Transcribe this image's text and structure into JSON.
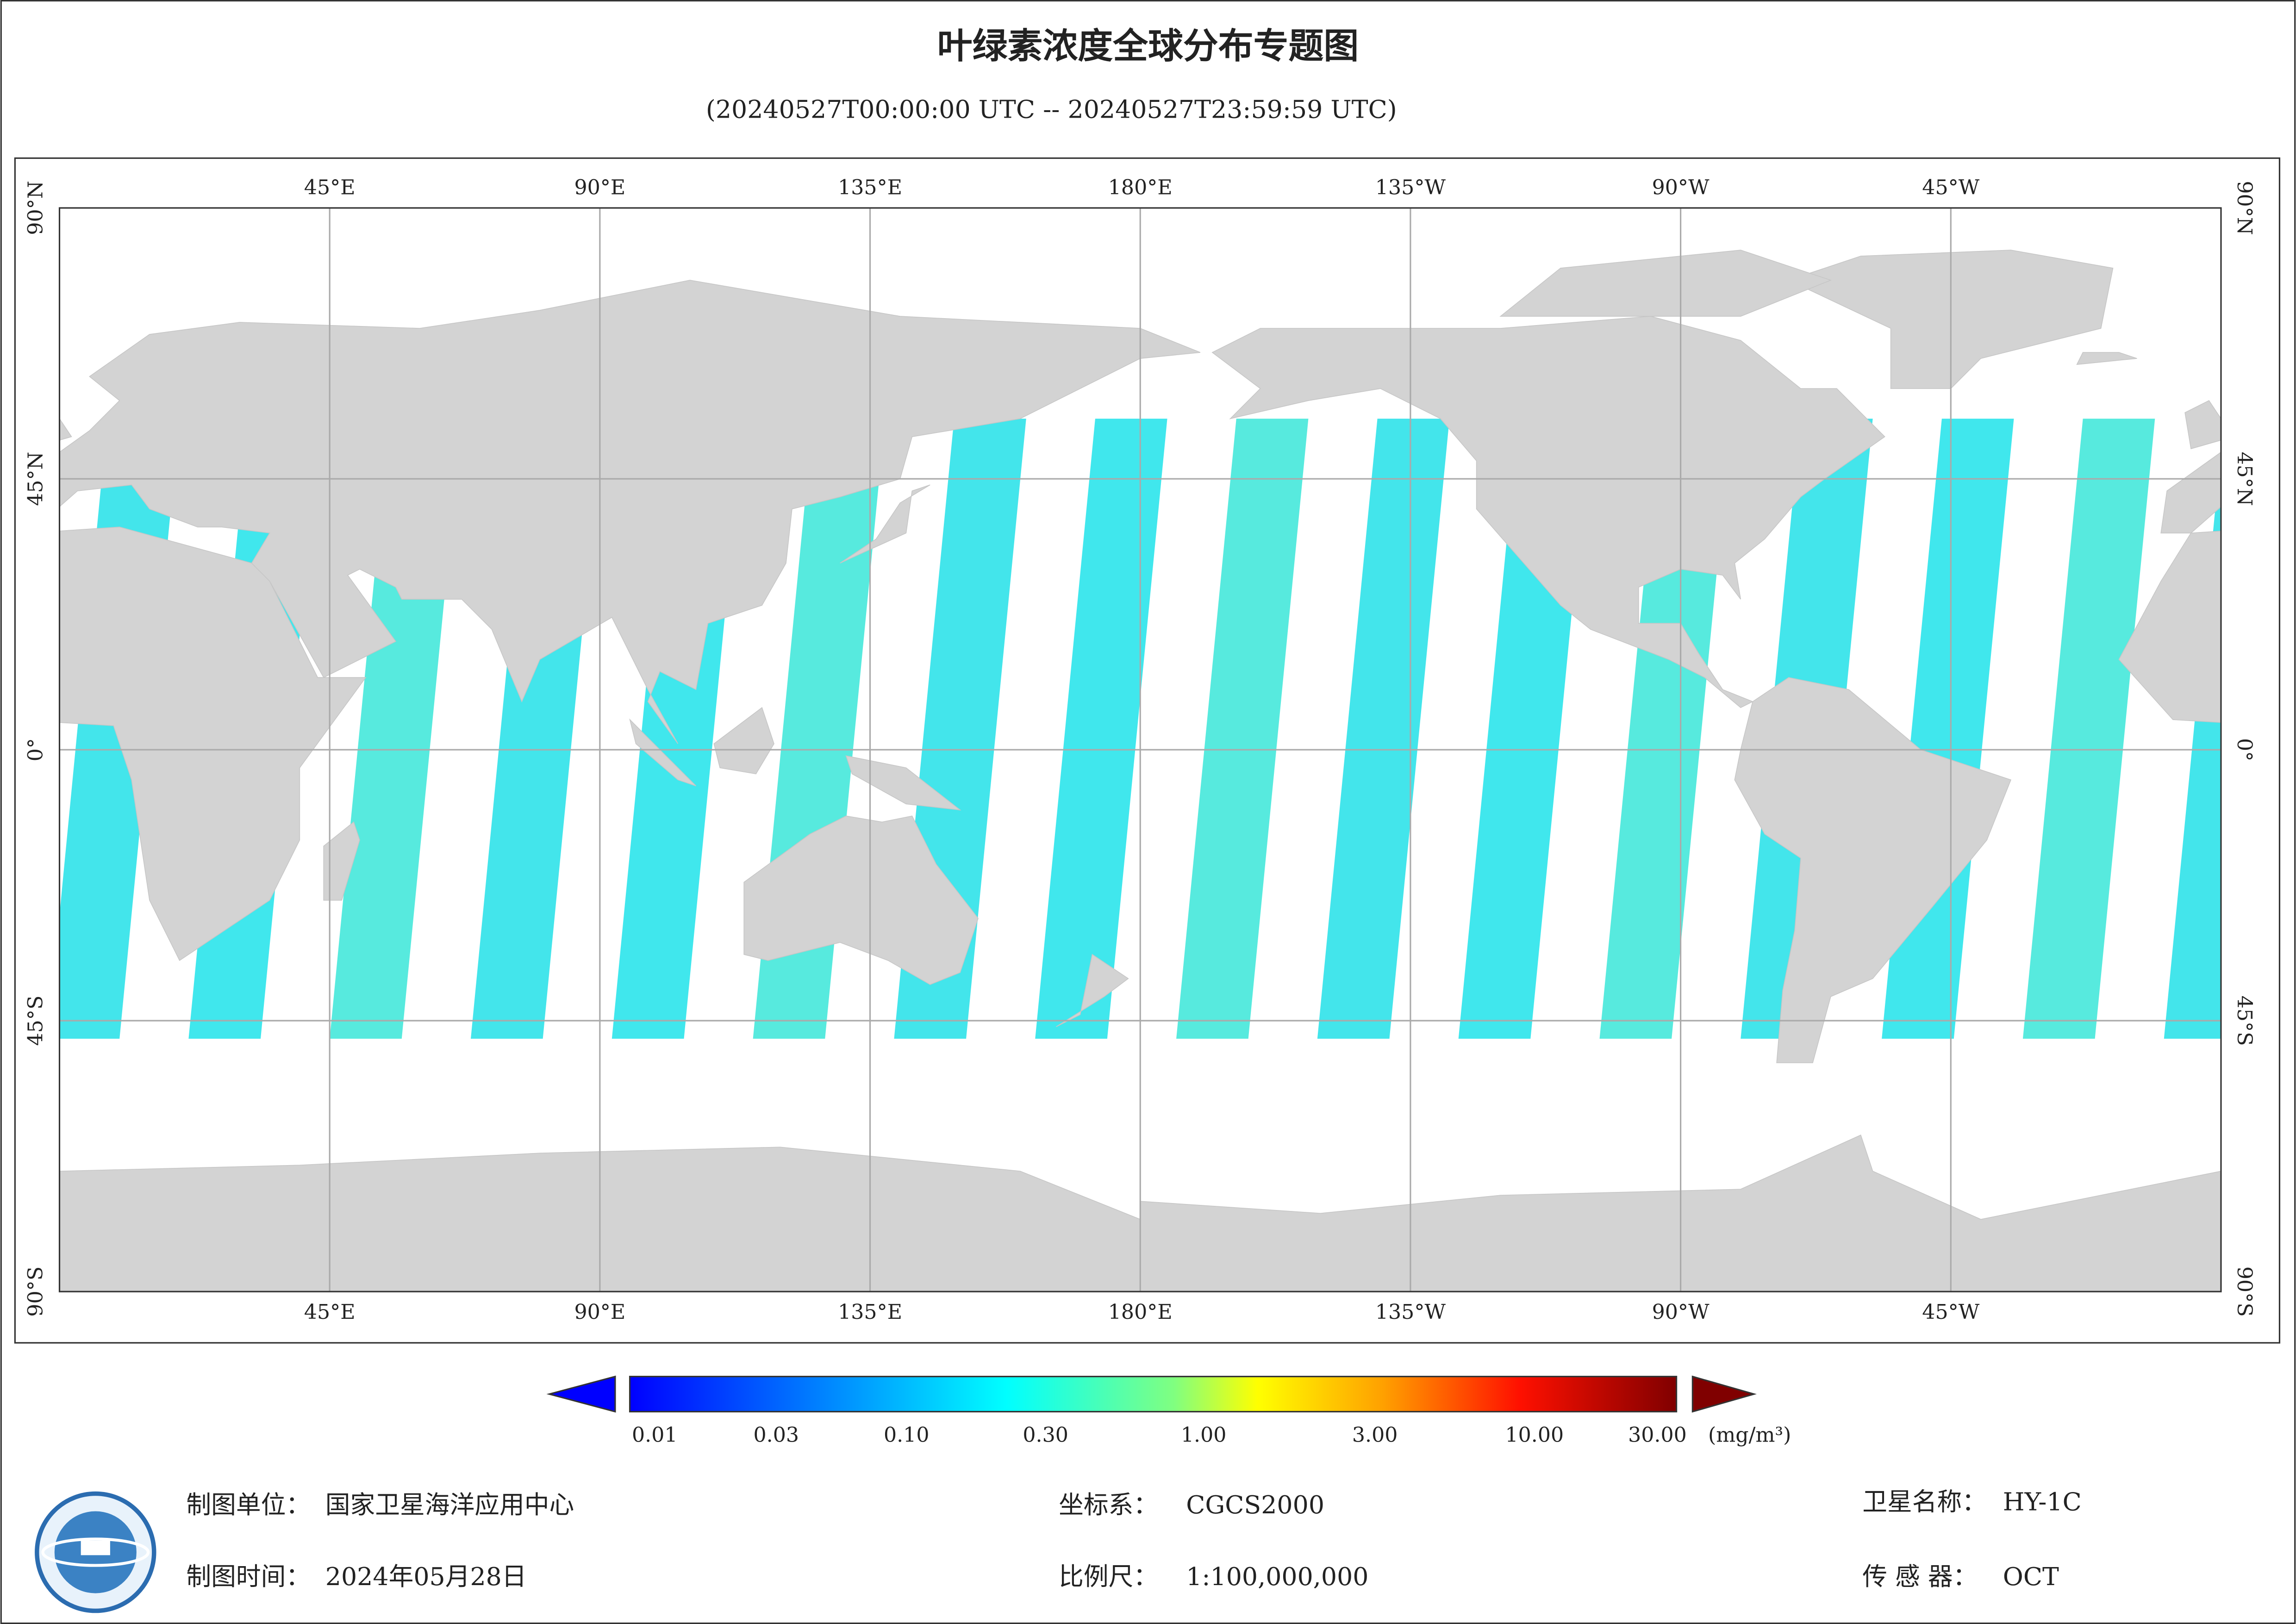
{
  "header": {
    "title": "叶绿素浓度全球分布专题图",
    "subtitle": "(20240527T00:00:00 UTC -- 20240527T23:59:59 UTC)"
  },
  "map": {
    "lon_labels": [
      "45°E",
      "90°E",
      "135°E",
      "180°E",
      "135°W",
      "90°W",
      "45°W"
    ],
    "lat_labels": [
      "90°N",
      "45°N",
      "0°",
      "45°S",
      "90°S"
    ]
  },
  "colorbar": {
    "ticks": [
      "0.01",
      "0.03",
      "0.10",
      "0.30",
      "1.00",
      "3.00",
      "10.00",
      "30.00"
    ],
    "unit": "(mg/m³)"
  },
  "footer": {
    "org_label": "制图单位：",
    "org": "国家卫星海洋应用中心",
    "date_label": "制图时间：",
    "date": "2024年05月28日",
    "crs_label": "坐标系：",
    "crs": "CGCS2000",
    "scale_label": "比例尺：",
    "scale": "1:100,000,000",
    "satellite_label": "卫星名称：",
    "satellite": "HY-1C",
    "sensor_label": "传 感 器：",
    "sensor": "OCT"
  }
}
